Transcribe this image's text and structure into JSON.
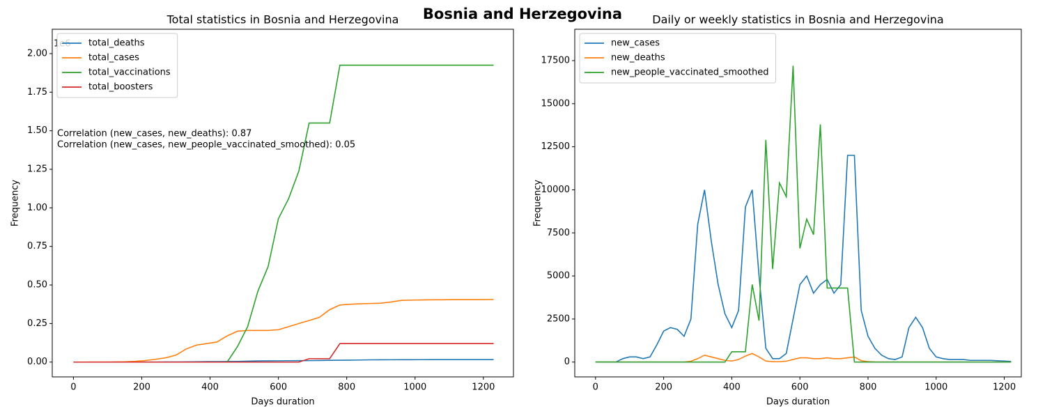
{
  "title": "Bosnia and Herzegovina",
  "chart_data": [
    {
      "type": "line",
      "title": "Total statistics in Bosnia and Herzegovina",
      "xlabel": "Days duration",
      "ylabel": "Frequency",
      "y_offset_label": "1e6",
      "annotations": [
        "Correlation (new_cases, new_deaths): 0.87",
        "Correlation (new_cases, new_people_vaccinated_smoothed): 0.05"
      ],
      "legend": "upper left",
      "xlim": [
        -62,
        1288
      ],
      "ylim": [
        -96000,
        2158000
      ],
      "xticks": [
        0,
        200,
        400,
        600,
        800,
        1000,
        1200
      ],
      "yticks": [
        {
          "value": 0,
          "label": "0.00"
        },
        {
          "value": 250000,
          "label": "0.25"
        },
        {
          "value": 500000,
          "label": "0.50"
        },
        {
          "value": 750000,
          "label": "0.75"
        },
        {
          "value": 1000000,
          "label": "1.00"
        },
        {
          "value": 1250000,
          "label": "1.25"
        },
        {
          "value": 1500000,
          "label": "1.50"
        },
        {
          "value": 1750000,
          "label": "1.75"
        },
        {
          "value": 2000000,
          "label": "2.00"
        }
      ],
      "x": [
        0,
        30,
        60,
        90,
        120,
        150,
        180,
        210,
        240,
        270,
        300,
        330,
        360,
        390,
        420,
        450,
        480,
        510,
        540,
        570,
        600,
        630,
        660,
        690,
        720,
        750,
        780,
        810,
        840,
        870,
        900,
        930,
        960,
        990,
        1020,
        1050,
        1080,
        1110,
        1140,
        1170,
        1200,
        1230
      ],
      "series": [
        {
          "name": "total_deaths",
          "color": "#1f77b4",
          "values": [
            0,
            0,
            0,
            0,
            0,
            0,
            0,
            100,
            300,
            600,
            900,
            1500,
            2200,
            2900,
            3300,
            3700,
            4400,
            6000,
            7500,
            8100,
            8500,
            9000,
            9300,
            9600,
            10500,
            11500,
            12000,
            12600,
            13500,
            14700,
            15000,
            15200,
            15500,
            15700,
            15800,
            15900,
            16000,
            16100,
            16100,
            16200,
            16200,
            16300
          ]
        },
        {
          "name": "total_cases",
          "color": "#ff7f0e",
          "values": [
            0,
            0,
            100,
            300,
            1000,
            2000,
            5000,
            10000,
            18000,
            28000,
            45000,
            85000,
            110000,
            120000,
            130000,
            170000,
            200000,
            205000,
            205000,
            205000,
            210000,
            230000,
            250000,
            270000,
            290000,
            340000,
            370000,
            375000,
            378000,
            380000,
            382000,
            390000,
            400000,
            402000,
            403000,
            404000,
            404000,
            405000,
            405000,
            405000,
            405000,
            406000
          ]
        },
        {
          "name": "total_vaccinations",
          "color": "#2ca02c",
          "values": [
            0,
            0,
            0,
            0,
            0,
            0,
            0,
            0,
            0,
            0,
            0,
            0,
            0,
            0,
            0,
            0,
            100000,
            230000,
            460000,
            620000,
            930000,
            1060000,
            1240000,
            1550000,
            1550000,
            1550000,
            1925000,
            1925000,
            1925000,
            1925000,
            1925000,
            1925000,
            1925000,
            1925000,
            1925000,
            1925000,
            1925000,
            1925000,
            1925000,
            1925000,
            1925000,
            1925000
          ]
        },
        {
          "name": "total_boosters",
          "color": "#d62728",
          "values": [
            0,
            0,
            0,
            0,
            0,
            0,
            0,
            0,
            0,
            0,
            0,
            0,
            0,
            0,
            0,
            0,
            0,
            0,
            0,
            0,
            0,
            0,
            0,
            22000,
            22000,
            22000,
            120000,
            120000,
            120000,
            120000,
            120000,
            120000,
            120000,
            120000,
            120000,
            120000,
            120000,
            120000,
            120000,
            120000,
            120000,
            120000
          ]
        }
      ]
    },
    {
      "type": "line",
      "title": "Daily or weekly statistics in Bosnia and Herzegovina",
      "xlabel": "Days duration",
      "ylabel": "Frequency",
      "legend": "upper left",
      "xlim": [
        -61,
        1250
      ],
      "ylim": [
        -860,
        19320
      ],
      "xticks": [
        0,
        200,
        400,
        600,
        800,
        1000,
        1200
      ],
      "yticks": [
        0,
        2500,
        5000,
        7500,
        10000,
        12500,
        15000,
        17500
      ],
      "x": [
        0,
        20,
        40,
        60,
        80,
        100,
        120,
        140,
        160,
        180,
        200,
        220,
        240,
        260,
        280,
        300,
        320,
        340,
        360,
        380,
        400,
        420,
        440,
        460,
        480,
        500,
        520,
        540,
        560,
        580,
        600,
        620,
        640,
        660,
        680,
        700,
        720,
        740,
        760,
        780,
        800,
        820,
        840,
        860,
        880,
        900,
        920,
        940,
        960,
        980,
        1000,
        1020,
        1040,
        1060,
        1080,
        1100,
        1120,
        1140,
        1160,
        1180,
        1200,
        1220
      ],
      "series": [
        {
          "name": "new_cases",
          "color": "#1f77b4",
          "values": [
            0,
            0,
            0,
            0,
            200,
            300,
            300,
            200,
            300,
            1000,
            1800,
            2000,
            1900,
            1500,
            2500,
            8000,
            10000,
            7000,
            4500,
            2800,
            2000,
            3000,
            9000,
            10000,
            5000,
            800,
            200,
            200,
            500,
            2500,
            4500,
            5000,
            4000,
            4500,
            4800,
            4000,
            4500,
            12000,
            12000,
            3000,
            1500,
            800,
            400,
            200,
            150,
            300,
            2000,
            2600,
            2000,
            800,
            300,
            200,
            150,
            150,
            150,
            100,
            100,
            100,
            100,
            80,
            60,
            40
          ]
        },
        {
          "name": "new_deaths",
          "color": "#ff7f0e",
          "values": [
            0,
            0,
            0,
            0,
            0,
            0,
            0,
            0,
            0,
            0,
            0,
            0,
            0,
            0,
            50,
            200,
            400,
            300,
            200,
            100,
            60,
            150,
            350,
            500,
            300,
            60,
            20,
            20,
            50,
            150,
            250,
            250,
            200,
            200,
            250,
            200,
            200,
            250,
            300,
            80,
            30,
            10,
            0,
            0,
            0,
            0,
            0,
            0,
            0,
            0,
            0,
            0,
            0,
            0,
            0,
            0,
            0,
            0,
            0,
            0,
            0,
            0
          ]
        },
        {
          "name": "new_people_vaccinated_smoothed",
          "color": "#2ca02c",
          "values": [
            0,
            0,
            0,
            0,
            0,
            0,
            0,
            0,
            0,
            0,
            0,
            0,
            0,
            0,
            0,
            0,
            0,
            0,
            0,
            0,
            600,
            600,
            600,
            4500,
            2400,
            12900,
            5400,
            10400,
            9600,
            17200,
            6600,
            8300,
            7400,
            13800,
            4300,
            4300,
            4300,
            4300,
            0,
            0,
            0,
            0,
            0,
            0,
            0,
            0,
            0,
            0,
            0,
            0,
            0,
            0,
            0,
            0,
            0,
            0,
            0,
            0,
            0,
            0,
            0,
            0
          ]
        }
      ]
    }
  ]
}
